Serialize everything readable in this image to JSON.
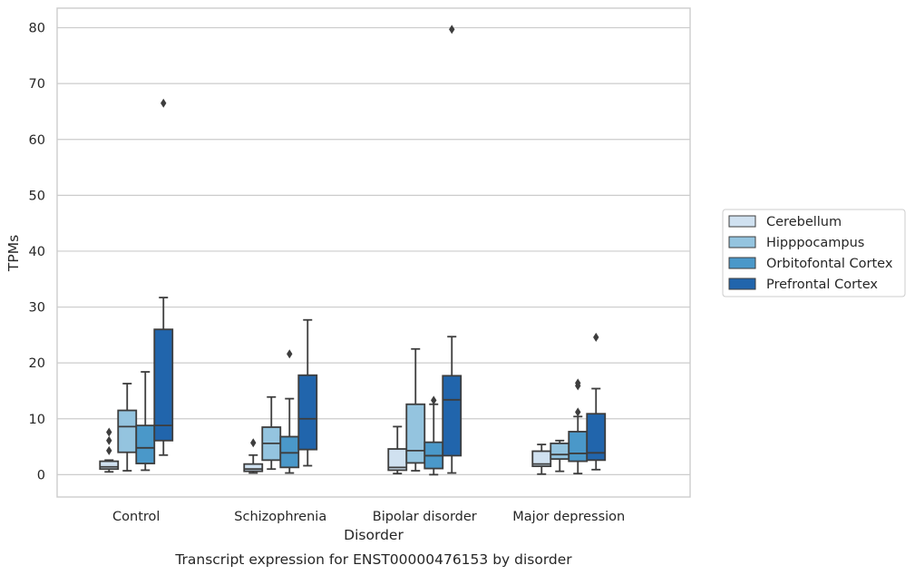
{
  "caption": "Transcript expression for ENST00000476153 by disorder",
  "chart_data": {
    "type": "box",
    "title": "",
    "xlabel": "Disorder",
    "ylabel": "TPMs",
    "ylim": [
      -4,
      83.5
    ],
    "yticks": [
      0,
      10,
      20,
      30,
      40,
      50,
      60,
      70,
      80
    ],
    "grid": "horizontal",
    "legend_position": "right",
    "categories": [
      "Control",
      "Schizophrenia",
      "Bipolar disorder",
      "Major depression"
    ],
    "series": [
      {
        "name": "Cerebellum",
        "color": "#d0e1f0",
        "boxes": [
          {
            "whisker_low": 0.5,
            "q1": 1.0,
            "median": 1.4,
            "q3": 2.4,
            "whisker_high": 2.6,
            "outliers": [
              4.3,
              6.1,
              7.6
            ]
          },
          {
            "whisker_low": 0.3,
            "q1": 0.6,
            "median": 1.0,
            "q3": 1.9,
            "whisker_high": 3.5,
            "outliers": [
              5.7
            ]
          },
          {
            "whisker_low": 0.2,
            "q1": 0.8,
            "median": 1.3,
            "q3": 4.6,
            "whisker_high": 8.6,
            "outliers": []
          },
          {
            "whisker_low": 0.1,
            "q1": 1.5,
            "median": 1.9,
            "q3": 4.2,
            "whisker_high": 5.4,
            "outliers": []
          }
        ]
      },
      {
        "name": "Hipppocampus",
        "color": "#94c4df",
        "boxes": [
          {
            "whisker_low": 0.7,
            "q1": 4.0,
            "median": 8.6,
            "q3": 11.5,
            "whisker_high": 16.3,
            "outliers": []
          },
          {
            "whisker_low": 1.0,
            "q1": 2.6,
            "median": 5.6,
            "q3": 8.5,
            "whisker_high": 13.9,
            "outliers": []
          },
          {
            "whisker_low": 0.7,
            "q1": 2.1,
            "median": 4.3,
            "q3": 12.6,
            "whisker_high": 22.5,
            "outliers": []
          },
          {
            "whisker_low": 0.6,
            "q1": 2.8,
            "median": 3.6,
            "q3": 5.6,
            "whisker_high": 6.1,
            "outliers": []
          }
        ]
      },
      {
        "name": "Orbitofontal Cortex",
        "color": "#4a98c9",
        "boxes": [
          {
            "whisker_low": 0.8,
            "q1": 2.0,
            "median": 4.8,
            "q3": 8.8,
            "whisker_high": 18.4,
            "outliers": []
          },
          {
            "whisker_low": 0.3,
            "q1": 1.3,
            "median": 3.9,
            "q3": 6.8,
            "whisker_high": 13.6,
            "outliers": [
              21.6
            ]
          },
          {
            "whisker_low": 0.0,
            "q1": 1.1,
            "median": 3.4,
            "q3": 5.8,
            "whisker_high": 12.6,
            "outliers": [
              13.3
            ]
          },
          {
            "whisker_low": 0.2,
            "q1": 2.4,
            "median": 3.8,
            "q3": 7.7,
            "whisker_high": 10.4,
            "outliers": [
              11.2,
              15.9,
              16.4
            ]
          }
        ]
      },
      {
        "name": "Prefrontal Cortex",
        "color": "#2165ac",
        "boxes": [
          {
            "whisker_low": 3.5,
            "q1": 6.1,
            "median": 8.8,
            "q3": 26.0,
            "whisker_high": 31.7,
            "outliers": [
              66.5
            ]
          },
          {
            "whisker_low": 1.6,
            "q1": 4.5,
            "median": 10.0,
            "q3": 17.8,
            "whisker_high": 27.7,
            "outliers": []
          },
          {
            "whisker_low": 0.3,
            "q1": 3.4,
            "median": 13.4,
            "q3": 17.7,
            "whisker_high": 24.7,
            "outliers": [
              79.7
            ]
          },
          {
            "whisker_low": 0.9,
            "q1": 2.6,
            "median": 3.9,
            "q3": 10.9,
            "whisker_high": 15.4,
            "outliers": [
              24.6
            ]
          }
        ]
      }
    ]
  }
}
